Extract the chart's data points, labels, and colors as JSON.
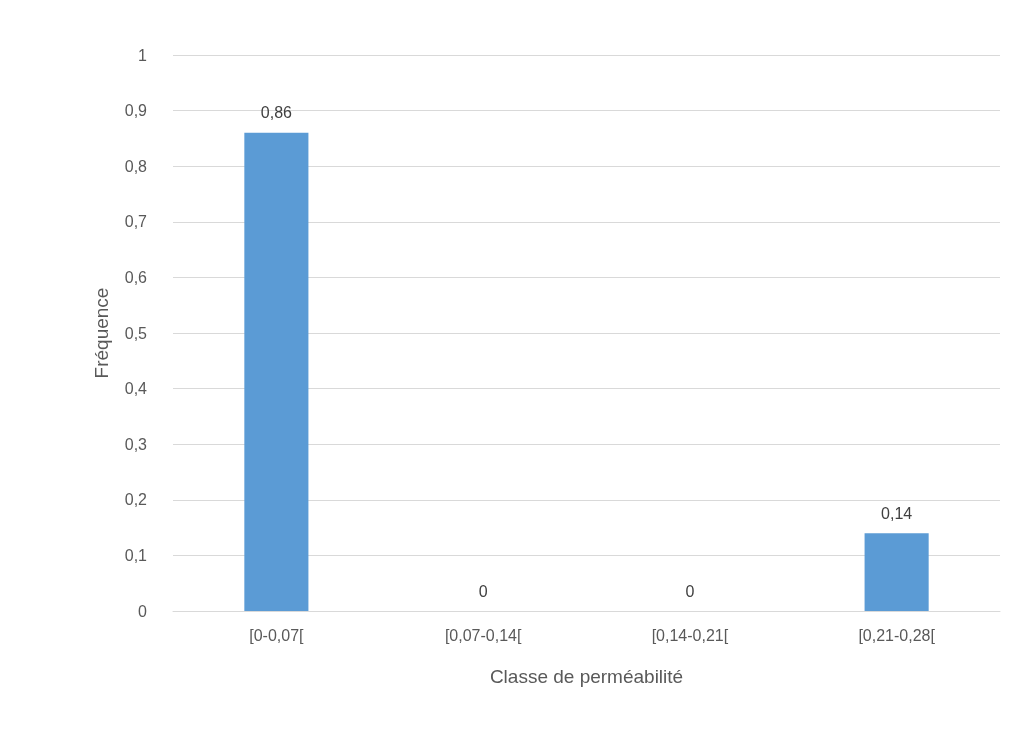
{
  "chart_data": {
    "type": "bar",
    "xlabel": "Classe de perméabilité",
    "ylabel": "Fréquence",
    "categories": [
      "[0-0,07[",
      "[0,07-0,14[",
      "[0,14-0,21[",
      "[0,21-0,28["
    ],
    "values": [
      0.86,
      0,
      0,
      0.14
    ],
    "color": "#5b9bd5",
    "value_labels": [
      "0,86",
      "0",
      "0",
      "0,14"
    ],
    "ylim": [
      0,
      1
    ],
    "yticks": [
      0,
      {
        "value": 0.1,
        "label": "0,1"
      },
      {
        "value": 0.2,
        "label": "0,2"
      },
      {
        "value": 0.3,
        "label": "0,3"
      },
      {
        "value": 0.4,
        "label": "0,4"
      },
      {
        "value": 0.5,
        "label": "0,5"
      },
      {
        "value": 0.6,
        "label": "0,6"
      },
      {
        "value": 0.7,
        "label": "0,7"
      },
      {
        "value": 0.8,
        "label": "0,8"
      },
      {
        "value": 0.9,
        "label": "0,9"
      },
      1
    ],
    "grid": "y"
  }
}
